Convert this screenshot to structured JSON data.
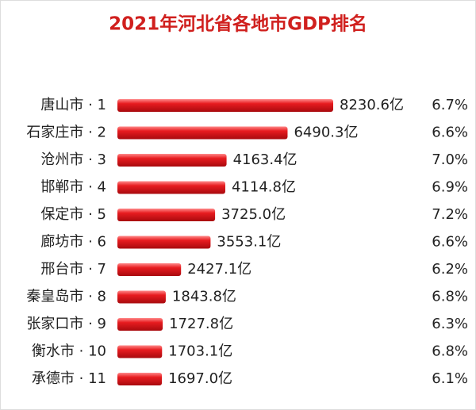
{
  "chart_data": {
    "type": "bar",
    "orientation": "horizontal",
    "title": "2021年河北省各地市GDP排名",
    "color": "#e0141a",
    "categories": [
      "唐山市 · 1",
      "石家庄市 · 2",
      "沧州市 · 3",
      "邯郸市 · 4",
      "保定市 · 5",
      "廊坊市 · 6",
      "邢台市 · 7",
      "秦皇岛市 · 8",
      "张家口市 · 9",
      "衡水市 · 10",
      "承德市 · 11"
    ],
    "values": [
      8230.6,
      6490.3,
      4163.4,
      4114.8,
      3725.0,
      3553.1,
      2427.1,
      1843.8,
      1727.8,
      1703.1,
      1697.0
    ],
    "value_labels": [
      "8230.6亿",
      "6490.3亿",
      "4163.4亿",
      "4114.8亿",
      "3725.0亿",
      "3553.1亿",
      "2427.1亿",
      "1843.8亿",
      "1727.8亿",
      "1703.1亿",
      "1697.0亿"
    ],
    "growth": {
      "color": "#d62a2a",
      "values": [
        6.7,
        6.6,
        7.0,
        6.9,
        7.2,
        6.6,
        6.2,
        6.8,
        6.3,
        6.8,
        6.1
      ],
      "value_labels": [
        "6.7%",
        "6.6%",
        "7.0%",
        "6.9%",
        "7.2%",
        "6.6%",
        "6.2%",
        "6.8%",
        "6.3%",
        "6.8%",
        "6.1%"
      ]
    }
  }
}
